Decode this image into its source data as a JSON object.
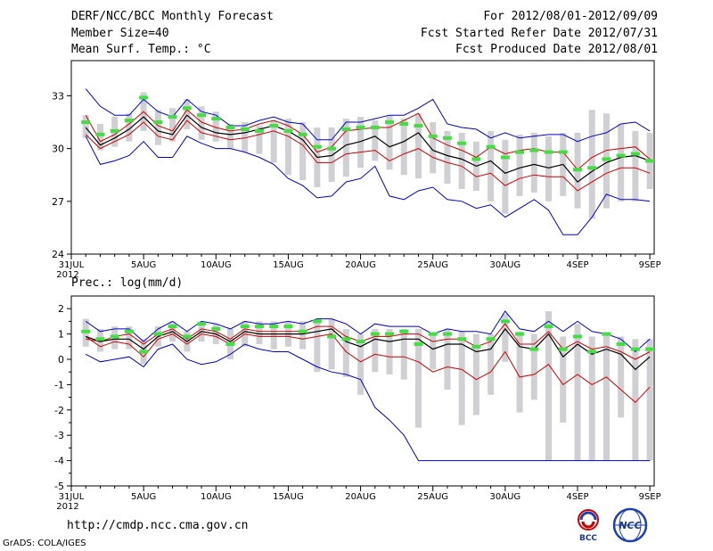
{
  "header": {
    "title": "DERF/NCC/BCC Monthly Forecast",
    "member_size": "Member Size=40",
    "variable": "Mean Surf. Temp.: °C",
    "period": "For 2012/08/01-2012/09/09",
    "started": "Fcst Started Refer Date 2012/07/31",
    "produced": "Fcst Produced Date 2012/08/01"
  },
  "footer": {
    "url": "http://cmdp.ncc.cma.gov.cn",
    "credit": "GrADS: COLA/IGES",
    "logo_left": "BCC",
    "logo_right": "NCC"
  },
  "colors": {
    "upper_bound": "#0000cc",
    "lower_bound": "#0000cc",
    "mean": "#000000",
    "spread_hi": "#cc0000",
    "spread_lo": "#cc0000",
    "box": "#d0d0d4",
    "climate": "#44dd44"
  },
  "chart_data": [
    {
      "type": "line",
      "title": "Mean Surf. Temp.: °C",
      "x_start_label": "2012",
      "x_tick_labels": [
        "31JUL",
        "5AUG",
        "10AUG",
        "15AUG",
        "20AUG",
        "25AUG",
        "30AUG",
        "4SEP",
        "9SEP"
      ],
      "x_tick_days": [
        0,
        5,
        10,
        15,
        20,
        25,
        30,
        35,
        40
      ],
      "y_ticks": [
        24,
        27,
        30,
        33
      ],
      "ylim": [
        24,
        35
      ],
      "days": [
        1,
        2,
        3,
        4,
        5,
        6,
        7,
        8,
        9,
        10,
        11,
        12,
        13,
        14,
        15,
        16,
        17,
        18,
        19,
        20,
        21,
        22,
        23,
        24,
        25,
        26,
        27,
        28,
        29,
        30,
        31,
        32,
        33,
        34,
        35,
        36,
        37,
        38,
        39,
        40
      ],
      "series": [
        {
          "name": "max",
          "values": [
            33.4,
            32.4,
            31.9,
            31.9,
            32.8,
            32.1,
            31.8,
            32.8,
            32.1,
            31.9,
            31.3,
            31.3,
            31.6,
            31.8,
            31.5,
            31.4,
            30.5,
            30.5,
            31.5,
            31.5,
            31.7,
            31.9,
            31.9,
            32.3,
            32.8,
            31.4,
            31.2,
            31.1,
            30.6,
            30.9,
            30.6,
            30.7,
            30.8,
            30.8,
            30.4,
            30.7,
            30.9,
            31.4,
            31.5,
            31.0
          ]
        },
        {
          "name": "upper",
          "values": [
            31.9,
            30.4,
            30.8,
            31.4,
            32.1,
            31.3,
            31.0,
            32.2,
            31.5,
            31.2,
            31.0,
            31.1,
            31.4,
            31.6,
            31.3,
            30.8,
            29.8,
            30.1,
            31.0,
            31.1,
            31.2,
            31.2,
            31.6,
            32.0,
            30.6,
            30.2,
            29.9,
            29.5,
            30.1,
            29.7,
            29.9,
            30.0,
            29.8,
            29.8,
            28.8,
            29.5,
            29.9,
            30.0,
            30.1,
            29.4
          ]
        },
        {
          "name": "mean",
          "values": [
            31.2,
            30.2,
            30.6,
            31.1,
            31.8,
            31.0,
            30.8,
            31.9,
            31.2,
            30.9,
            30.8,
            30.9,
            31.1,
            31.3,
            31.0,
            30.5,
            29.5,
            29.6,
            30.2,
            30.4,
            30.7,
            30.1,
            30.4,
            30.9,
            29.9,
            29.6,
            29.4,
            29.0,
            29.3,
            28.6,
            28.9,
            29.1,
            28.9,
            29.1,
            28.1,
            28.7,
            29.2,
            29.5,
            29.6,
            29.3
          ]
        },
        {
          "name": "lower",
          "values": [
            30.8,
            30.0,
            30.4,
            30.8,
            31.5,
            30.7,
            30.5,
            31.6,
            30.9,
            30.7,
            30.5,
            30.6,
            30.8,
            31.0,
            30.7,
            30.2,
            29.2,
            29.2,
            29.7,
            29.8,
            29.9,
            29.3,
            29.7,
            30.0,
            29.5,
            29.2,
            29.0,
            28.4,
            28.6,
            27.9,
            28.3,
            28.5,
            28.4,
            28.4,
            27.6,
            28.1,
            28.6,
            28.9,
            28.9,
            28.6
          ]
        },
        {
          "name": "min",
          "values": [
            30.7,
            29.1,
            29.3,
            29.6,
            30.4,
            29.5,
            29.5,
            30.7,
            30.3,
            30.0,
            30.0,
            29.8,
            29.5,
            29.1,
            28.3,
            27.9,
            27.2,
            27.3,
            28.1,
            28.3,
            29.0,
            27.3,
            27.1,
            27.6,
            27.8,
            27.1,
            27.0,
            26.6,
            26.8,
            26.1,
            26.6,
            27.1,
            26.5,
            25.1,
            25.1,
            26.1,
            27.4,
            27.1,
            27.1,
            27.0
          ]
        },
        {
          "name": "climate",
          "values": [
            31.5,
            30.8,
            31.0,
            31.6,
            32.9,
            31.5,
            31.8,
            32.3,
            31.9,
            31.7,
            31.2,
            31.1,
            31.0,
            31.3,
            31.0,
            30.8,
            30.1,
            30.0,
            31.1,
            31.2,
            31.2,
            31.5,
            31.4,
            31.3,
            30.7,
            30.6,
            30.3,
            29.4,
            30.1,
            29.5,
            29.8,
            29.9,
            29.8,
            29.8,
            28.8,
            28.9,
            29.4,
            29.6,
            29.7,
            29.3
          ]
        },
        {
          "name": "box_top",
          "values": [
            31.9,
            31.4,
            31.8,
            32.0,
            33.2,
            32.2,
            32.3,
            32.8,
            32.4,
            32.1,
            31.4,
            31.5,
            31.3,
            31.6,
            31.7,
            31.5,
            31.2,
            31.2,
            31.7,
            31.8,
            31.6,
            31.9,
            31.7,
            32.0,
            31.5,
            31.0,
            30.9,
            30.4,
            31.0,
            30.5,
            30.8,
            30.9,
            30.7,
            30.9,
            30.9,
            32.2,
            32.0,
            31.4,
            31.0,
            30.9
          ]
        },
        {
          "name": "box_bottom",
          "values": [
            30.6,
            29.9,
            30.1,
            30.4,
            31.0,
            30.2,
            30.4,
            31.1,
            30.5,
            30.4,
            30.0,
            29.8,
            29.7,
            29.2,
            28.5,
            28.2,
            27.8,
            28.1,
            28.4,
            28.9,
            29.3,
            28.8,
            28.5,
            28.3,
            28.6,
            28.0,
            27.7,
            27.6,
            27.0,
            26.3,
            27.3,
            27.5,
            27.0,
            27.3,
            26.6,
            26.0,
            26.6,
            27.0,
            27.0,
            27.7
          ]
        }
      ]
    },
    {
      "type": "line",
      "title": "Prec.: log(mm/d)",
      "x_start_label": "2012",
      "x_tick_labels": [
        "31JUL",
        "5AUG",
        "10AUG",
        "15AUG",
        "20AUG",
        "25AUG",
        "30AUG",
        "4SEP",
        "9SEP"
      ],
      "x_tick_days": [
        0,
        5,
        10,
        15,
        20,
        25,
        30,
        35,
        40
      ],
      "y_ticks": [
        -5,
        -4,
        -3,
        -2,
        -1,
        0,
        1,
        2
      ],
      "ylim": [
        -5,
        2.5
      ],
      "days": [
        1,
        2,
        3,
        4,
        5,
        6,
        7,
        8,
        9,
        10,
        11,
        12,
        13,
        14,
        15,
        16,
        17,
        18,
        19,
        20,
        21,
        22,
        23,
        24,
        25,
        26,
        27,
        28,
        29,
        30,
        31,
        32,
        33,
        34,
        35,
        36,
        37,
        38,
        39,
        40
      ],
      "series": [
        {
          "name": "max",
          "values": [
            1.5,
            1.1,
            1.2,
            1.2,
            0.7,
            1.2,
            1.5,
            1.1,
            1.5,
            1.4,
            1.2,
            1.5,
            1.4,
            1.4,
            1.5,
            1.4,
            1.6,
            1.6,
            1.4,
            1.0,
            1.4,
            1.3,
            1.3,
            1.3,
            1.0,
            1.2,
            1.1,
            1.1,
            1.0,
            1.9,
            1.2,
            1.1,
            1.5,
            1.1,
            1.5,
            1.1,
            1.0,
            0.8,
            0.3,
            0.8
          ]
        },
        {
          "name": "upper",
          "values": [
            0.8,
            0.7,
            0.9,
            1.0,
            0.6,
            1.0,
            1.2,
            0.8,
            1.2,
            1.1,
            0.8,
            1.2,
            1.1,
            1.1,
            1.1,
            1.1,
            1.3,
            1.3,
            0.9,
            0.7,
            0.9,
            0.9,
            1.0,
            1.0,
            0.7,
            0.8,
            0.8,
            0.5,
            0.7,
            1.4,
            0.6,
            0.6,
            1.1,
            0.4,
            0.7,
            0.4,
            0.5,
            0.3,
            0.0,
            0.3
          ]
        },
        {
          "name": "mean",
          "values": [
            0.9,
            0.7,
            0.8,
            0.8,
            0.4,
            0.9,
            1.1,
            0.7,
            1.1,
            1.0,
            0.7,
            1.1,
            1.0,
            1.0,
            1.0,
            1.0,
            1.1,
            1.2,
            0.7,
            0.5,
            0.8,
            0.7,
            0.8,
            0.8,
            0.4,
            0.6,
            0.6,
            0.3,
            0.4,
            1.2,
            0.5,
            0.4,
            1.0,
            0.1,
            0.6,
            0.2,
            0.4,
            0.2,
            -0.4,
            0.1
          ]
        },
        {
          "name": "lower",
          "values": [
            0.9,
            0.5,
            0.7,
            0.6,
            0.1,
            0.8,
            1.0,
            0.6,
            1.0,
            0.9,
            0.6,
            1.0,
            0.9,
            0.9,
            0.9,
            0.8,
            0.9,
            1.0,
            0.3,
            -0.1,
            0.2,
            0.1,
            0.1,
            -0.1,
            -0.5,
            -0.3,
            -0.4,
            -0.8,
            -0.5,
            0.3,
            -0.7,
            -0.6,
            -0.2,
            -1.0,
            -0.6,
            -1.0,
            -0.7,
            -1.2,
            -1.7,
            -1.1
          ]
        },
        {
          "name": "min",
          "values": [
            0.2,
            -0.1,
            0.0,
            0.1,
            -0.3,
            0.4,
            0.6,
            0.0,
            -0.2,
            -0.1,
            0.2,
            0.6,
            0.4,
            0.3,
            0.3,
            0.0,
            -0.3,
            -0.5,
            -0.6,
            -0.8,
            -1.9,
            -2.4,
            -3.0,
            -4.0,
            -4.0,
            -4.0,
            -4.0,
            -4.0,
            -4.0,
            -4.0,
            -4.0,
            -4.0,
            -4.0,
            -4.0,
            -4.0,
            -4.0,
            -4.0,
            -4.0,
            -4.0,
            -4.0
          ]
        },
        {
          "name": "climate",
          "values": [
            1.1,
            0.8,
            0.9,
            1.1,
            0.3,
            1.0,
            1.3,
            0.9,
            1.4,
            1.2,
            0.6,
            1.3,
            1.3,
            1.3,
            1.3,
            1.1,
            1.5,
            0.9,
            0.8,
            0.7,
            1.0,
            1.0,
            1.1,
            0.6,
            1.0,
            1.0,
            0.8,
            0.5,
            0.8,
            1.5,
            1.0,
            0.4,
            1.3,
            0.4,
            0.9,
            0.3,
            1.0,
            0.6,
            0.4,
            0.4
          ]
        },
        {
          "name": "box_top",
          "values": [
            1.6,
            1.2,
            1.3,
            1.3,
            0.8,
            1.3,
            1.5,
            1.1,
            1.5,
            1.4,
            1.2,
            1.5,
            1.5,
            1.5,
            1.5,
            1.5,
            1.6,
            1.6,
            1.2,
            1.0,
            1.2,
            1.2,
            1.2,
            1.2,
            1.0,
            1.2,
            1.1,
            1.0,
            1.0,
            1.8,
            1.1,
            1.0,
            1.9,
            0.9,
            1.4,
            0.9,
            1.0,
            0.9,
            0.8,
            0.8
          ]
        },
        {
          "name": "box_bottom",
          "values": [
            0.5,
            0.3,
            0.4,
            0.4,
            -0.2,
            0.5,
            0.7,
            0.3,
            0.7,
            0.6,
            0.0,
            0.5,
            0.6,
            0.4,
            0.5,
            0.4,
            -0.5,
            -0.4,
            -0.7,
            -1.4,
            -0.5,
            -0.6,
            -0.8,
            -2.7,
            -0.4,
            -1.2,
            -2.6,
            -2.2,
            -1.4,
            -0.1,
            -2.1,
            -1.6,
            -4.0,
            -2.5,
            -4.0,
            -4.0,
            -4.0,
            -2.3,
            -4.0,
            -4.0
          ]
        }
      ]
    }
  ]
}
